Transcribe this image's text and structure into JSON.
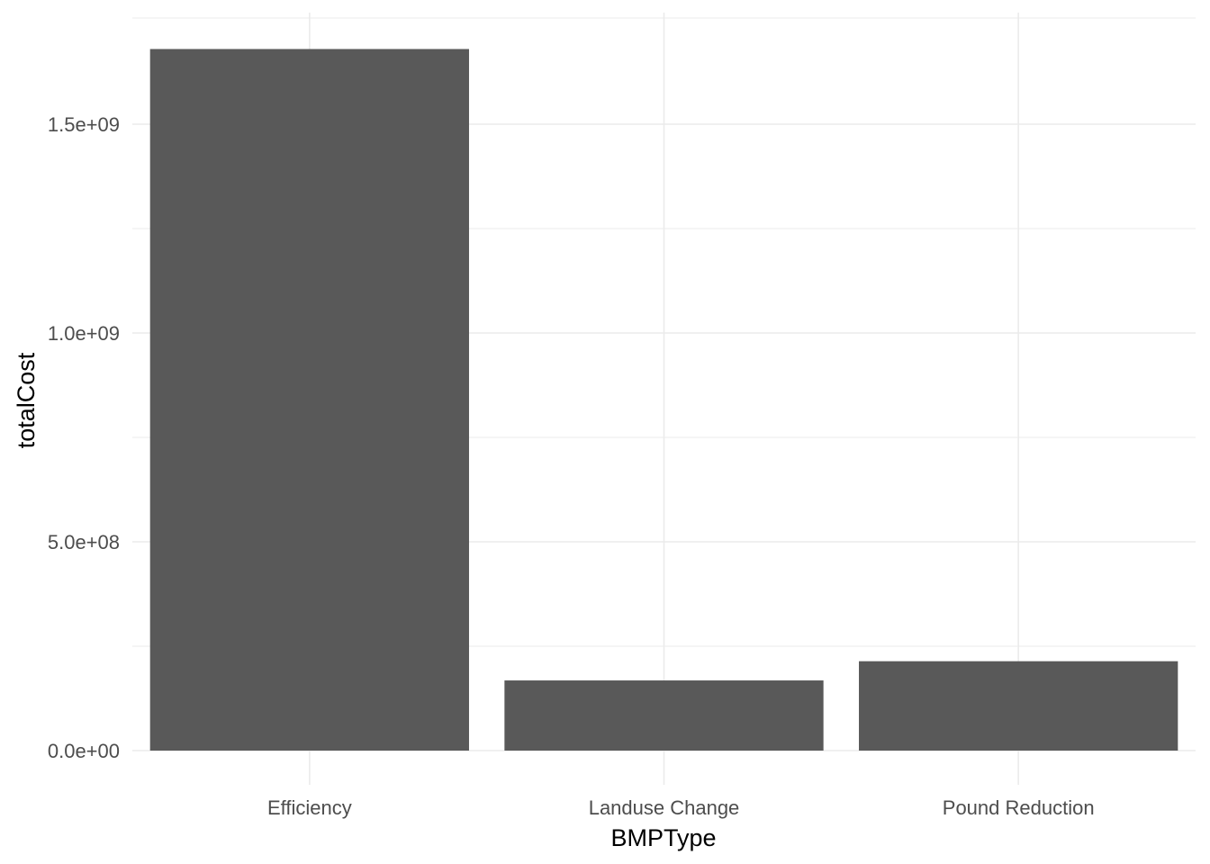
{
  "chart_data": {
    "type": "bar",
    "title": "",
    "xlabel": "BMPType",
    "ylabel": "totalCost",
    "categories": [
      "Efficiency",
      "Landuse Change",
      "Pound Reduction"
    ],
    "values": [
      1680000000,
      168000000,
      214000000
    ],
    "ylim": [
      0,
      1700000000
    ],
    "yticks": [
      0,
      500000000,
      1000000000,
      1500000000
    ],
    "ytick_labels": [
      "0.0e+00",
      "5.0e+08",
      "1.0e+09",
      "1.5e+09"
    ],
    "grid": true,
    "legend": "none",
    "bar_color": "#595959",
    "grid_color": "#ebebeb"
  }
}
